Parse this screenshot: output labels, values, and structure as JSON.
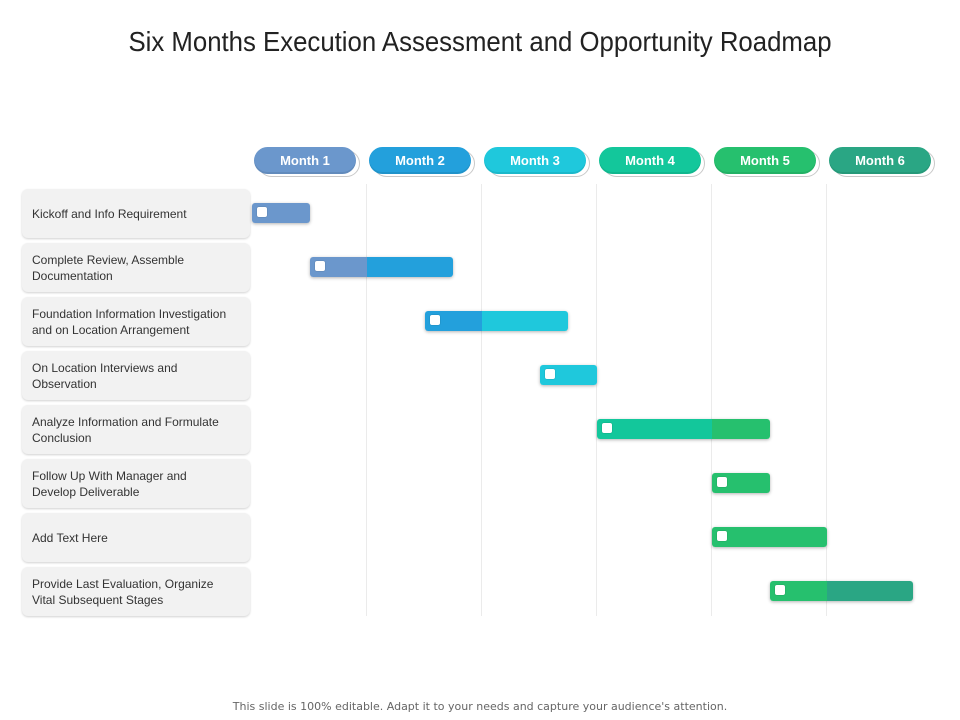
{
  "title": "Six Months Execution Assessment and Opportunity Roadmap",
  "footer": "This slide is 100% editable. Adapt it to your needs and capture your audience's attention.",
  "months": [
    {
      "label": "Month 1",
      "color": "#6b97cc"
    },
    {
      "label": "Month 2",
      "color": "#23a0dc"
    },
    {
      "label": "Month 3",
      "color": "#1fc8dc"
    },
    {
      "label": "Month 4",
      "color": "#13c79b"
    },
    {
      "label": "Month 5",
      "color": "#26c06e"
    },
    {
      "label": "Month 6",
      "color": "#2aa684"
    }
  ],
  "tasks": [
    {
      "label": "Kickoff and Info Requirement",
      "start": 1.0,
      "end": 1.5
    },
    {
      "label": "Complete Review, Assemble Documentation",
      "start": 1.5,
      "end": 2.75
    },
    {
      "label": "Foundation Information Investigation and on Location Arrangement",
      "start": 2.5,
      "end": 3.75
    },
    {
      "label": "On Location Interviews and Observation",
      "start": 3.5,
      "end": 4.0
    },
    {
      "label": "Analyze Information and Formulate Conclusion",
      "start": 4.0,
      "end": 5.5
    },
    {
      "label": "Follow Up With Manager and  Develop  Deliverable",
      "start": 5.0,
      "end": 5.5
    },
    {
      "label": "Add Text Here",
      "start": 5.0,
      "end": 6.0
    },
    {
      "label": "Provide Last Evaluation, Organize Vital Subsequent Stages",
      "start": 5.5,
      "end": 6.75
    }
  ]
}
